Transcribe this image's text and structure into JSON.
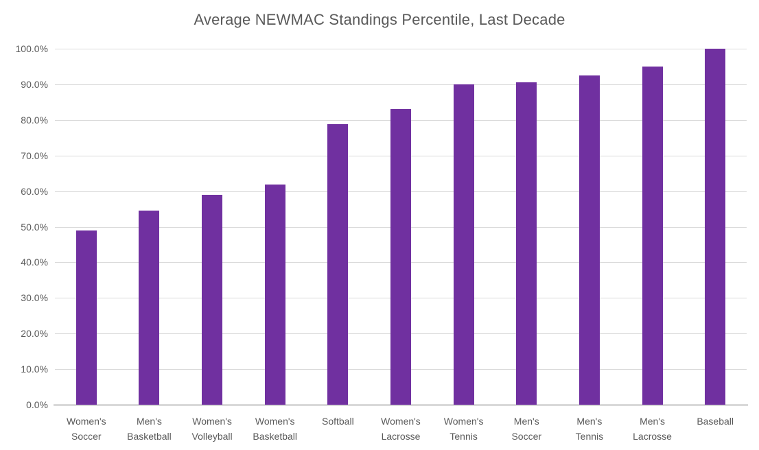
{
  "title": "Average NEWMAC Standings Percentile, Last Decade",
  "colors": {
    "bar": "#7030A0",
    "gridline": "#D9D9D9",
    "axis_line": "#D9D9D9",
    "title_text": "#595959",
    "tick_text": "#595959",
    "background": "#FFFFFF"
  },
  "chart_data": {
    "type": "bar",
    "title": "Average NEWMAC Standings Percentile, Last Decade",
    "categories": [
      "Women's Soccer",
      "Men's Basketball",
      "Women's Volleyball",
      "Women's Basketball",
      "Softball",
      "Women's Lacrosse",
      "Women's Tennis",
      "Men's Soccer",
      "Men's Tennis",
      "Men's Lacrosse",
      "Baseball"
    ],
    "values": [
      49.0,
      54.5,
      59.0,
      61.8,
      78.8,
      83.0,
      89.9,
      90.5,
      92.5,
      95.0,
      100.0
    ],
    "unit": "%",
    "xlabel": "",
    "ylabel": "",
    "ylim": [
      0,
      100
    ],
    "ytick_step": 10,
    "ytick_labels": [
      "0.0%",
      "10.0%",
      "20.0%",
      "30.0%",
      "40.0%",
      "50.0%",
      "60.0%",
      "70.0%",
      "80.0%",
      "90.0%",
      "100.0%"
    ],
    "grid": true,
    "legend": false,
    "bar_color": "#7030A0"
  }
}
